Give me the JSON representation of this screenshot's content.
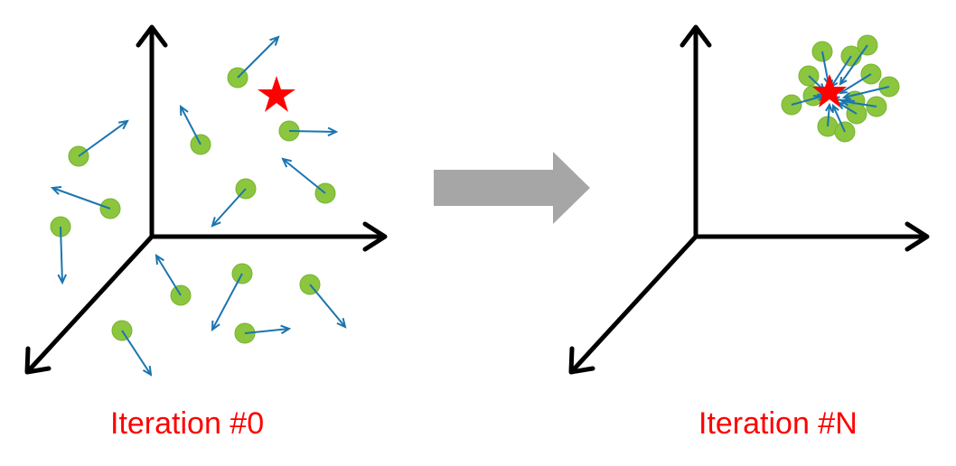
{
  "colors": {
    "axis": "#000000",
    "particle": "#8cc63f",
    "particle_stroke": "#77b330",
    "velocity_arrow": "#1b75b0",
    "target_star": "#ff0000",
    "transition_arrow": "#a6a6a6",
    "caption": "#ff0000"
  },
  "icons": {
    "target": "star-icon",
    "transition": "right-arrow-icon"
  },
  "panels": [
    {
      "caption": "Iteration #0"
    },
    {
      "caption": "Iteration #N"
    }
  ]
}
